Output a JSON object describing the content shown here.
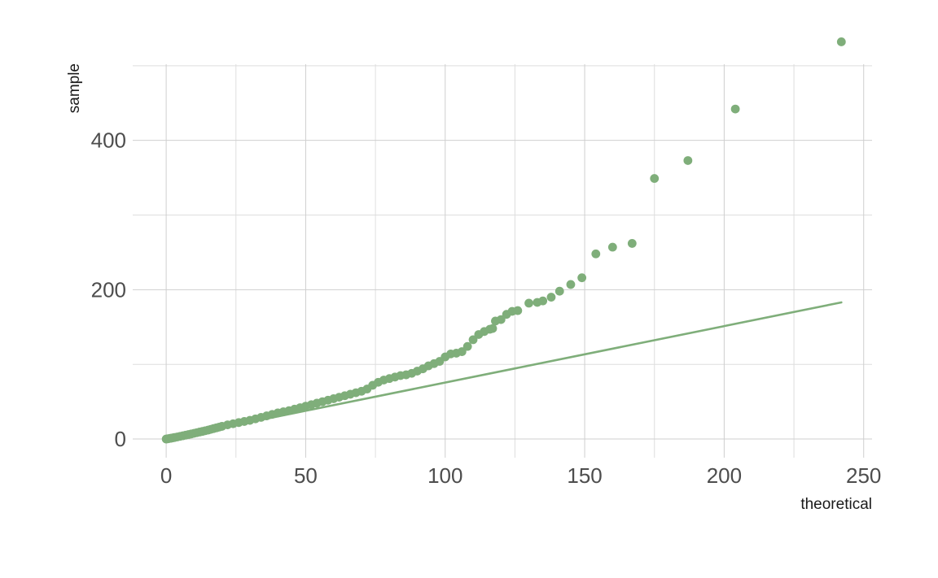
{
  "chart_data": {
    "type": "scatter",
    "title": "",
    "xlabel": "theoretical",
    "ylabel": "sample",
    "xlim": [
      -12,
      253
    ],
    "ylim": [
      -25,
      502
    ],
    "x_ticks": [
      0,
      50,
      100,
      150,
      200,
      250
    ],
    "x_tick_labels": [
      "0",
      "50",
      "100",
      "150",
      "200",
      "250"
    ],
    "x_minor_ticks": [
      25,
      75,
      125,
      175,
      225
    ],
    "y_ticks": [
      0,
      200,
      400
    ],
    "y_tick_labels": [
      "0",
      "200",
      "400"
    ],
    "y_minor_ticks": [
      100,
      300,
      500
    ],
    "grid": true,
    "legend": "none",
    "point_color": "#7fae7a",
    "line_color": "#7fae7a",
    "series": [
      {
        "kind": "points",
        "points": [
          [
            0,
            0
          ],
          [
            0.5,
            0.3
          ],
          [
            1,
            0.6
          ],
          [
            1.5,
            1
          ],
          [
            2,
            1.3
          ],
          [
            2.5,
            1.7
          ],
          [
            3,
            2
          ],
          [
            4,
            2.8
          ],
          [
            5,
            3.6
          ],
          [
            6,
            4.4
          ],
          [
            7,
            5.2
          ],
          [
            8,
            6
          ],
          [
            9,
            6.8
          ],
          [
            10,
            7.7
          ],
          [
            11,
            8.5
          ],
          [
            12,
            9.4
          ],
          [
            13,
            10.2
          ],
          [
            14,
            11.1
          ],
          [
            15,
            12
          ],
          [
            16,
            13
          ],
          [
            17,
            14
          ],
          [
            18,
            15
          ],
          [
            19,
            16
          ],
          [
            20,
            17
          ],
          [
            22,
            19
          ],
          [
            24,
            20.5
          ],
          [
            26,
            22
          ],
          [
            28,
            23.5
          ],
          [
            30,
            25
          ],
          [
            32,
            27
          ],
          [
            34,
            29
          ],
          [
            36,
            31
          ],
          [
            38,
            33
          ],
          [
            40,
            35
          ],
          [
            42,
            36.5
          ],
          [
            44,
            38
          ],
          [
            46,
            40
          ],
          [
            48,
            42
          ],
          [
            50,
            44
          ],
          [
            52,
            46
          ],
          [
            54,
            48
          ],
          [
            56,
            50
          ],
          [
            58,
            52
          ],
          [
            60,
            54
          ],
          [
            62,
            56
          ],
          [
            64,
            58
          ],
          [
            66,
            60
          ],
          [
            68,
            62
          ],
          [
            70,
            64
          ],
          [
            72,
            67
          ],
          [
            74,
            72
          ],
          [
            76,
            76
          ],
          [
            78,
            79
          ],
          [
            80,
            81
          ],
          [
            82,
            83
          ],
          [
            84,
            85
          ],
          [
            86,
            86
          ],
          [
            88,
            88
          ],
          [
            90,
            91
          ],
          [
            92,
            94
          ],
          [
            94,
            98
          ],
          [
            96,
            101
          ],
          [
            98,
            104
          ],
          [
            100,
            110
          ],
          [
            102,
            114
          ],
          [
            104,
            115
          ],
          [
            106,
            117
          ],
          [
            108,
            124
          ],
          [
            110,
            133
          ],
          [
            112,
            140
          ],
          [
            114,
            144
          ],
          [
            116,
            147
          ],
          [
            117,
            148
          ],
          [
            118,
            158
          ],
          [
            120,
            160
          ],
          [
            122,
            167
          ],
          [
            124,
            171
          ],
          [
            126,
            172
          ],
          [
            130,
            182
          ],
          [
            133,
            183
          ],
          [
            135,
            185
          ],
          [
            138,
            190
          ],
          [
            141,
            198
          ],
          [
            145,
            207
          ],
          [
            149,
            216
          ],
          [
            154,
            248
          ],
          [
            160,
            257
          ],
          [
            167,
            262
          ],
          [
            175,
            349
          ],
          [
            187,
            373
          ],
          [
            204,
            442
          ],
          [
            242,
            532
          ]
        ]
      },
      {
        "kind": "reference-line",
        "points": [
          [
            0,
            0
          ],
          [
            242,
            183
          ]
        ]
      }
    ]
  }
}
